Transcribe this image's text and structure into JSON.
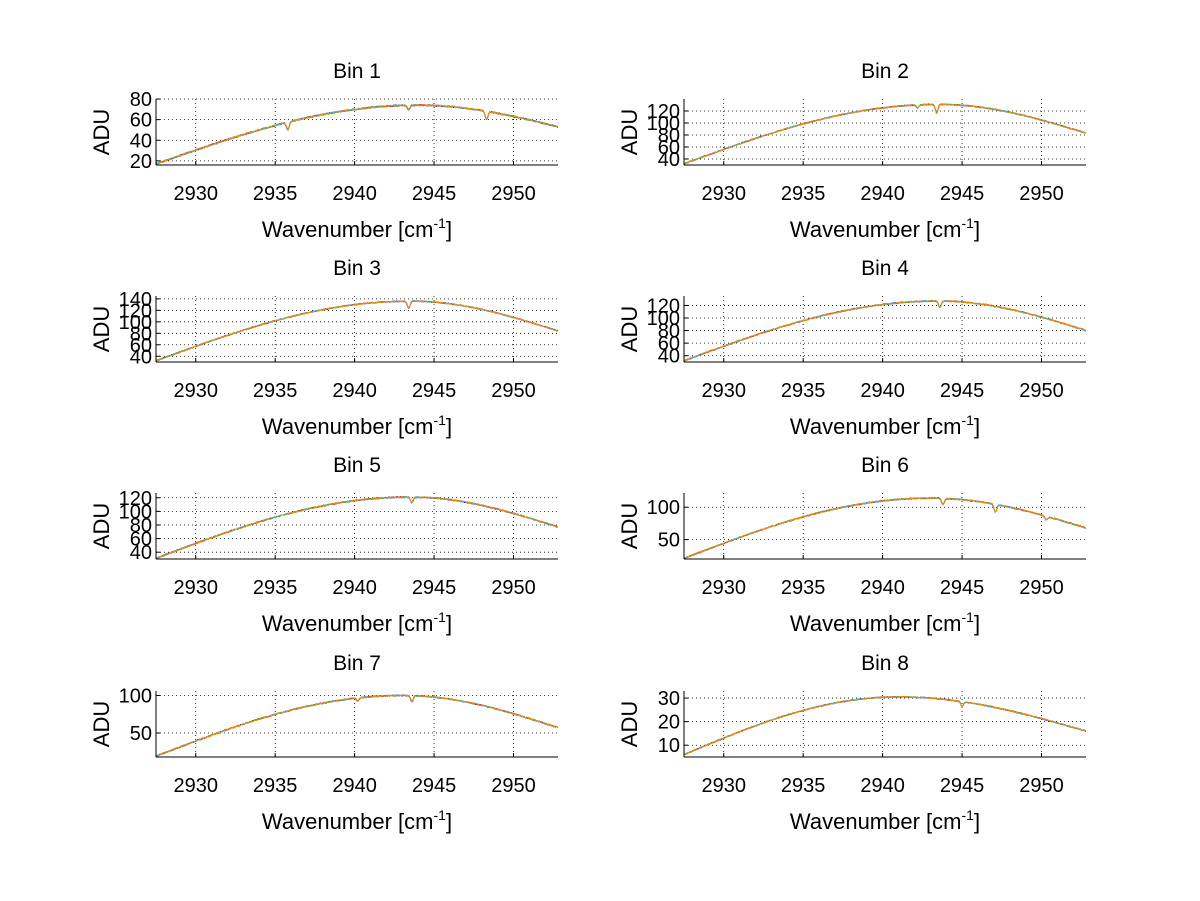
{
  "chart_data": [
    {
      "type": "line",
      "title": "Bin 1",
      "xlabel": "Wavenumber [cm",
      "xlabel_sup": "-1",
      "xlabel_end": "]",
      "ylabel": "ADU",
      "xlim": [
        2927.5,
        2952.8
      ],
      "ylim": [
        16,
        80
      ],
      "xticks": [
        2930,
        2935,
        2940,
        2945,
        2950
      ],
      "yticks": [
        20,
        40,
        60,
        80
      ],
      "grid": true,
      "series_colors": [
        "#0000ff",
        "#00aa00",
        "#ff0000",
        "#00bfbf",
        "#ff8c00"
      ],
      "curve": {
        "start": 17,
        "peak": 74,
        "peak_at": 2944,
        "end": 53,
        "noise": 1.5
      },
      "dips": [
        {
          "x": 2935.8,
          "depth": 7
        },
        {
          "x": 2943.4,
          "depth": 4
        },
        {
          "x": 2948.3,
          "depth": 8
        }
      ]
    },
    {
      "type": "line",
      "title": "Bin 2",
      "xlabel": "Wavenumber [cm",
      "xlabel_sup": "-1",
      "xlabel_end": "]",
      "ylabel": "ADU",
      "xlim": [
        2927.5,
        2952.8
      ],
      "ylim": [
        30,
        140
      ],
      "xticks": [
        2930,
        2935,
        2940,
        2945,
        2950
      ],
      "yticks": [
        40,
        60,
        80,
        100,
        120
      ],
      "grid": true,
      "series_colors": [
        "#0000ff",
        "#00aa00",
        "#ff0000",
        "#00bfbf",
        "#ff8c00"
      ],
      "curve": {
        "start": 32,
        "peak": 131,
        "peak_at": 2943.5,
        "end": 83,
        "noise": 2.0
      },
      "dips": [
        {
          "x": 2943.4,
          "depth": 14
        },
        {
          "x": 2942.2,
          "depth": 5
        }
      ]
    },
    {
      "type": "line",
      "title": "Bin 3",
      "xlabel": "Wavenumber [cm",
      "xlabel_sup": "-1",
      "xlabel_end": "]",
      "ylabel": "ADU",
      "xlim": [
        2927.5,
        2952.8
      ],
      "ylim": [
        30,
        145
      ],
      "xticks": [
        2930,
        2935,
        2940,
        2945,
        2950
      ],
      "yticks": [
        40,
        60,
        80,
        100,
        120,
        140
      ],
      "grid": true,
      "series_colors": [
        "#0000ff",
        "#00aa00",
        "#ff0000",
        "#00bfbf",
        "#ff8c00"
      ],
      "curve": {
        "start": 32,
        "peak": 136,
        "peak_at": 2943.5,
        "end": 84,
        "noise": 2.0
      },
      "dips": [
        {
          "x": 2943.4,
          "depth": 12
        }
      ]
    },
    {
      "type": "line",
      "title": "Bin 4",
      "xlabel": "Wavenumber [cm",
      "xlabel_sup": "-1",
      "xlabel_end": "]",
      "ylabel": "ADU",
      "xlim": [
        2927.5,
        2952.8
      ],
      "ylim": [
        30,
        135
      ],
      "xticks": [
        2930,
        2935,
        2940,
        2945,
        2950
      ],
      "yticks": [
        40,
        60,
        80,
        100,
        120
      ],
      "grid": true,
      "series_colors": [
        "#0000ff",
        "#00aa00",
        "#ff0000",
        "#00bfbf",
        "#ff8c00"
      ],
      "curve": {
        "start": 32,
        "peak": 127,
        "peak_at": 2943.5,
        "end": 80,
        "noise": 2.0
      },
      "dips": [
        {
          "x": 2943.6,
          "depth": 10
        }
      ]
    },
    {
      "type": "line",
      "title": "Bin 5",
      "xlabel": "Wavenumber [cm",
      "xlabel_sup": "-1",
      "xlabel_end": "]",
      "ylabel": "ADU",
      "xlim": [
        2927.5,
        2952.8
      ],
      "ylim": [
        30,
        127
      ],
      "xticks": [
        2930,
        2935,
        2940,
        2945,
        2950
      ],
      "yticks": [
        40,
        60,
        80,
        100,
        120
      ],
      "grid": true,
      "series_colors": [
        "#0000ff",
        "#00aa00",
        "#ff0000",
        "#00bfbf",
        "#ff8c00"
      ],
      "curve": {
        "start": 31,
        "peak": 121,
        "peak_at": 2943.5,
        "end": 77,
        "noise": 2.0
      },
      "dips": [
        {
          "x": 2943.6,
          "depth": 8
        }
      ]
    },
    {
      "type": "line",
      "title": "Bin 6",
      "xlabel": "Wavenumber [cm",
      "xlabel_sup": "-1",
      "xlabel_end": "]",
      "ylabel": "ADU",
      "xlim": [
        2927.5,
        2952.8
      ],
      "ylim": [
        20,
        122
      ],
      "xticks": [
        2930,
        2935,
        2940,
        2945,
        2950
      ],
      "yticks": [
        50,
        100
      ],
      "grid": true,
      "series_colors": [
        "#0000ff",
        "#00aa00",
        "#ff0000",
        "#00bfbf",
        "#ff8c00"
      ],
      "curve": {
        "start": 21,
        "peak": 114,
        "peak_at": 2943,
        "end": 68,
        "noise": 2.0
      },
      "dips": [
        {
          "x": 2943.8,
          "depth": 10
        },
        {
          "x": 2947.1,
          "depth": 12
        },
        {
          "x": 2950.3,
          "depth": 6
        }
      ]
    },
    {
      "type": "line",
      "title": "Bin 7",
      "xlabel": "Wavenumber [cm",
      "xlabel_sup": "-1",
      "xlabel_end": "]",
      "ylabel": "ADU",
      "xlim": [
        2927.5,
        2952.8
      ],
      "ylim": [
        18,
        106
      ],
      "xticks": [
        2930,
        2935,
        2940,
        2945,
        2950
      ],
      "yticks": [
        50,
        100
      ],
      "grid": true,
      "series_colors": [
        "#0000ff",
        "#00aa00",
        "#ff0000",
        "#00bfbf",
        "#ff8c00"
      ],
      "curve": {
        "start": 19,
        "peak": 100,
        "peak_at": 2943,
        "end": 57,
        "noise": 1.8
      },
      "dips": [
        {
          "x": 2943.6,
          "depth": 8
        },
        {
          "x": 2940.2,
          "depth": 4
        }
      ]
    },
    {
      "type": "line",
      "title": "Bin 8",
      "xlabel": "Wavenumber [cm",
      "xlabel_sup": "-1",
      "xlabel_end": "]",
      "ylabel": "ADU",
      "xlim": [
        2927.5,
        2952.8
      ],
      "ylim": [
        5,
        33
      ],
      "xticks": [
        2930,
        2935,
        2940,
        2945,
        2950
      ],
      "yticks": [
        10,
        20,
        30
      ],
      "grid": true,
      "series_colors": [
        "#0000ff",
        "#00aa00",
        "#ff0000",
        "#00bfbf",
        "#ff8c00"
      ],
      "curve": {
        "start": 6,
        "peak": 30.5,
        "peak_at": 2941,
        "end": 16,
        "noise": 0.5
      },
      "dips": [
        {
          "x": 2945,
          "depth": 2
        }
      ]
    }
  ]
}
